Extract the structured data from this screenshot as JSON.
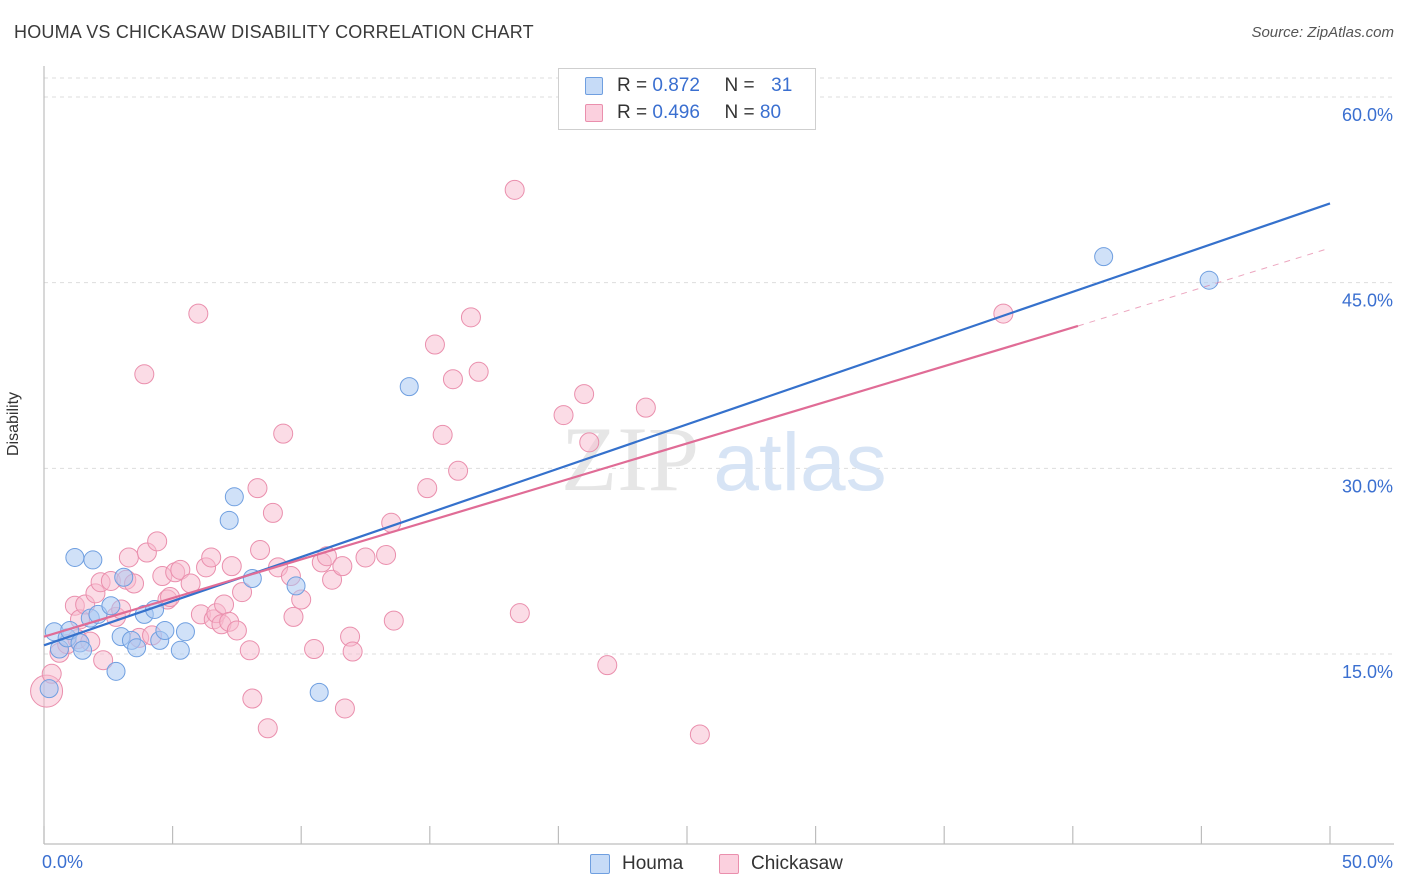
{
  "header": {
    "title": "HOUMA VS CHICKASAW DISABILITY CORRELATION CHART",
    "source": "Source: ZipAtlas.com"
  },
  "watermark": {
    "zip": "ZIP",
    "atlas": "atlas"
  },
  "legend": {
    "houma": {
      "r_label": "R =",
      "r_value": "0.872",
      "n_label": "N =",
      "n_value": "31"
    },
    "chickasaw": {
      "r_label": "R =",
      "r_value": "0.496",
      "n_label": "N =",
      "n_value": "80"
    }
  },
  "bottom_legend": {
    "houma": "Houma",
    "chickasaw": "Chickasaw"
  },
  "colors": {
    "houma_fill": "#a9c8f3",
    "houma_stroke": "#6f9fe0",
    "houma_line": "#3571cc",
    "chickasaw_fill": "#f7b9cd",
    "chickasaw_stroke": "#ea8fad",
    "chickasaw_line": "#e06c96",
    "tick_label": "#3a6fd0",
    "grid": "#dddddd"
  },
  "chart_data": {
    "type": "scatter",
    "title": "HOUMA VS CHICKASAW DISABILITY CORRELATION CHART",
    "xlabel": "",
    "ylabel": "Disability",
    "xlim": [
      0,
      50
    ],
    "ylim": [
      0,
      63
    ],
    "x_tick_labels": [
      {
        "value": 0,
        "label": "0.0%"
      },
      {
        "value": 50,
        "label": "50.0%"
      }
    ],
    "y_tick_labels": [
      {
        "value": 15,
        "label": "15.0%"
      },
      {
        "value": 30,
        "label": "30.0%"
      },
      {
        "value": 45,
        "label": "45.0%"
      },
      {
        "value": 60,
        "label": "60.0%"
      }
    ],
    "grid": true,
    "series": [
      {
        "name": "Houma",
        "color": "#a9c8f3",
        "trend": {
          "x": [
            0,
            50
          ],
          "y": [
            15.7,
            51.4
          ],
          "style": "solid"
        },
        "points": [
          [
            0.2,
            12.2
          ],
          [
            0.4,
            16.8
          ],
          [
            0.6,
            15.4
          ],
          [
            0.9,
            16.3
          ],
          [
            1.0,
            16.9
          ],
          [
            1.2,
            22.8
          ],
          [
            1.4,
            15.9
          ],
          [
            1.5,
            15.3
          ],
          [
            1.8,
            17.9
          ],
          [
            1.9,
            22.6
          ],
          [
            2.1,
            18.2
          ],
          [
            2.6,
            18.9
          ],
          [
            2.8,
            13.6
          ],
          [
            3.0,
            16.4
          ],
          [
            3.1,
            21.2
          ],
          [
            3.4,
            16.1
          ],
          [
            3.6,
            15.5
          ],
          [
            3.9,
            18.2
          ],
          [
            4.3,
            18.6
          ],
          [
            4.5,
            16.1
          ],
          [
            4.7,
            16.9
          ],
          [
            5.3,
            15.3
          ],
          [
            5.5,
            16.8
          ],
          [
            7.2,
            25.8
          ],
          [
            7.4,
            27.7
          ],
          [
            8.1,
            21.1
          ],
          [
            9.8,
            20.5
          ],
          [
            10.7,
            11.9
          ],
          [
            14.2,
            36.6
          ],
          [
            41.2,
            47.1
          ],
          [
            45.3,
            45.2
          ]
        ]
      },
      {
        "name": "Chickasaw",
        "color": "#f7b9cd",
        "trend": {
          "x": [
            0,
            40.2
          ],
          "y": [
            16.4,
            41.5
          ],
          "style": "solid",
          "extended_to": [
            50,
            47.8
          ],
          "extended_style": "dashed"
        },
        "points": [
          [
            0.1,
            12.0
          ],
          [
            0.3,
            13.4
          ],
          [
            0.6,
            15.1
          ],
          [
            0.9,
            15.8
          ],
          [
            1.2,
            18.9
          ],
          [
            1.3,
            16.2
          ],
          [
            1.4,
            17.8
          ],
          [
            1.6,
            19.0
          ],
          [
            1.8,
            16.0
          ],
          [
            2.0,
            19.9
          ],
          [
            2.2,
            20.8
          ],
          [
            2.3,
            14.5
          ],
          [
            2.6,
            20.9
          ],
          [
            2.8,
            18.0
          ],
          [
            3.0,
            18.6
          ],
          [
            3.2,
            21.0
          ],
          [
            3.3,
            22.8
          ],
          [
            3.5,
            20.7
          ],
          [
            3.7,
            16.3
          ],
          [
            3.9,
            37.6
          ],
          [
            4.0,
            23.2
          ],
          [
            4.2,
            16.5
          ],
          [
            4.4,
            24.1
          ],
          [
            4.6,
            21.3
          ],
          [
            4.8,
            19.4
          ],
          [
            4.9,
            19.6
          ],
          [
            5.1,
            21.6
          ],
          [
            5.3,
            21.8
          ],
          [
            5.7,
            20.7
          ],
          [
            6.0,
            42.5
          ],
          [
            6.1,
            18.2
          ],
          [
            6.3,
            22.0
          ],
          [
            6.5,
            22.8
          ],
          [
            6.6,
            17.8
          ],
          [
            6.7,
            18.3
          ],
          [
            6.9,
            17.4
          ],
          [
            7.0,
            19.0
          ],
          [
            7.2,
            17.6
          ],
          [
            7.3,
            22.1
          ],
          [
            7.5,
            16.9
          ],
          [
            7.7,
            20.0
          ],
          [
            8.0,
            15.3
          ],
          [
            8.1,
            11.4
          ],
          [
            8.3,
            28.4
          ],
          [
            8.4,
            23.4
          ],
          [
            8.7,
            9.0
          ],
          [
            8.9,
            26.4
          ],
          [
            9.1,
            22.0
          ],
          [
            9.3,
            32.8
          ],
          [
            9.6,
            21.3
          ],
          [
            9.7,
            18.0
          ],
          [
            10.0,
            19.4
          ],
          [
            10.5,
            15.4
          ],
          [
            10.8,
            22.4
          ],
          [
            11.0,
            22.9
          ],
          [
            11.2,
            21.0
          ],
          [
            11.6,
            22.1
          ],
          [
            11.7,
            10.6
          ],
          [
            11.9,
            16.4
          ],
          [
            12.0,
            15.2
          ],
          [
            12.5,
            22.8
          ],
          [
            13.3,
            23.0
          ],
          [
            13.5,
            25.6
          ],
          [
            13.6,
            17.7
          ],
          [
            14.9,
            28.4
          ],
          [
            15.2,
            40.0
          ],
          [
            15.5,
            32.7
          ],
          [
            15.9,
            37.2
          ],
          [
            16.1,
            29.8
          ],
          [
            16.6,
            42.2
          ],
          [
            16.9,
            37.8
          ],
          [
            18.3,
            52.5
          ],
          [
            18.5,
            18.3
          ],
          [
            20.2,
            34.3
          ],
          [
            21.0,
            36.0
          ],
          [
            21.2,
            32.1
          ],
          [
            21.9,
            14.1
          ],
          [
            23.4,
            34.9
          ],
          [
            25.5,
            8.5
          ],
          [
            37.3,
            42.5
          ]
        ]
      }
    ]
  }
}
